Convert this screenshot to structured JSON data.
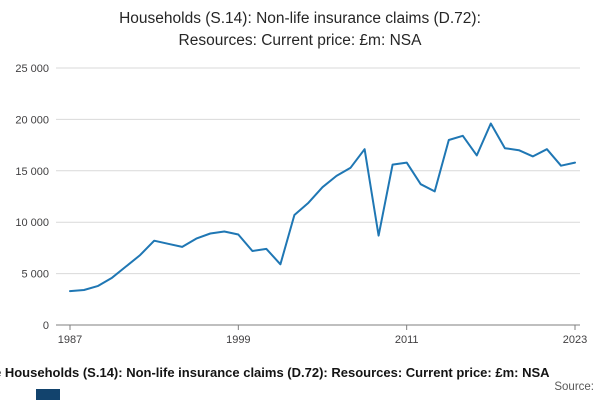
{
  "title": {
    "line1": "Households (S.14): Non-life insurance claims (D.72):",
    "line2": "Resources: Current price: £m: NSA"
  },
  "chart_data": {
    "type": "line",
    "title": "Households (S.14): Non-life insurance claims (D.72): Resources: Current price: £m: NSA",
    "xlabel": "",
    "ylabel": "",
    "ylim": [
      0,
      25000
    ],
    "grid": true,
    "legend_position": "bottom",
    "line_color": "#1f77b4",
    "years": [
      1987,
      1988,
      1989,
      1990,
      1991,
      1992,
      1993,
      1994,
      1995,
      1996,
      1997,
      1998,
      1999,
      2000,
      2001,
      2002,
      2003,
      2004,
      2005,
      2006,
      2007,
      2008,
      2009,
      2010,
      2011,
      2012,
      2013,
      2014,
      2015,
      2016,
      2017,
      2018,
      2019,
      2020,
      2021,
      2022,
      2023
    ],
    "values": [
      3300,
      3400,
      3800,
      4600,
      5700,
      6800,
      8200,
      7900,
      7600,
      8400,
      8900,
      9100,
      8800,
      7200,
      7400,
      5900,
      10700,
      11900,
      13400,
      14500,
      15300,
      17100,
      8700,
      15600,
      15800,
      13700,
      13000,
      18000,
      18400,
      16500,
      19600,
      17200,
      17000,
      16400,
      17100,
      15500,
      15800
    ],
    "y_ticks": [
      0,
      5000,
      10000,
      15000,
      20000,
      25000
    ],
    "y_tick_labels": [
      "0",
      "5 000",
      "10 000",
      "15 000",
      "20 000",
      "25 000"
    ],
    "x_tick_years": [
      1987,
      1999,
      2011,
      2023
    ]
  },
  "footer": {
    "legend_text": "e Households (S.14): Non-life insurance claims (D.72): Resources: Current price: £m: NSA",
    "source_label": "Source:"
  },
  "colors": {
    "line": "#1f77b4",
    "grid": "#d9d9d9",
    "axis": "#7f7f7f",
    "tick_text": "#414042",
    "logo": "#12436d"
  }
}
